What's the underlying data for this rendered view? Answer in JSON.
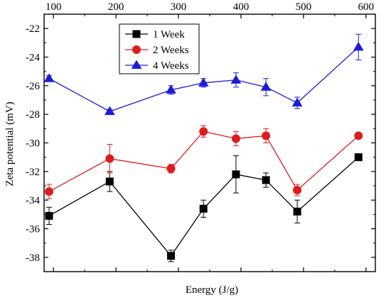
{
  "chart_data": {
    "type": "line",
    "title": "",
    "xlabel": "Energy (J/g)",
    "ylabel": "Zeta potential (mV)",
    "xlim": [
      85,
      615
    ],
    "ylim": [
      -39,
      -21
    ],
    "x_ticks": [
      100,
      200,
      300,
      400,
      500,
      600
    ],
    "x_ticks_position": "top",
    "y_ticks": [
      -22,
      -24,
      -26,
      -28,
      -30,
      -32,
      -34,
      -36,
      -38
    ],
    "grid": false,
    "legend_position": "top-left",
    "series": [
      {
        "name": "1 Week",
        "color": "#000000",
        "marker": "square",
        "x": [
          93,
          190,
          288,
          340,
          392,
          440,
          490,
          588
        ],
        "y": [
          -35.1,
          -32.7,
          -37.9,
          -34.6,
          -32.2,
          -32.6,
          -34.8,
          -31.0
        ],
        "err": [
          0.6,
          0.7,
          0.4,
          0.6,
          1.3,
          0.5,
          0.8,
          0.2
        ]
      },
      {
        "name": "2 Weeks",
        "color": "#dd1c1c",
        "marker": "circle",
        "x": [
          93,
          190,
          288,
          340,
          392,
          440,
          490,
          588
        ],
        "y": [
          -33.4,
          -31.1,
          -31.8,
          -29.2,
          -29.7,
          -29.5,
          -33.3,
          -29.5
        ],
        "err": [
          0.5,
          1.0,
          0.3,
          0.4,
          0.5,
          0.5,
          0.4,
          0.1
        ]
      },
      {
        "name": "4 Weeks",
        "color": "#1c1cd8",
        "marker": "triangle",
        "x": [
          93,
          190,
          288,
          340,
          392,
          440,
          490,
          588
        ],
        "y": [
          -25.5,
          -27.8,
          -26.3,
          -25.8,
          -25.6,
          -26.1,
          -27.2,
          -23.3
        ],
        "err": [
          0.2,
          0.15,
          0.3,
          0.3,
          0.5,
          0.6,
          0.4,
          0.9
        ]
      }
    ]
  }
}
